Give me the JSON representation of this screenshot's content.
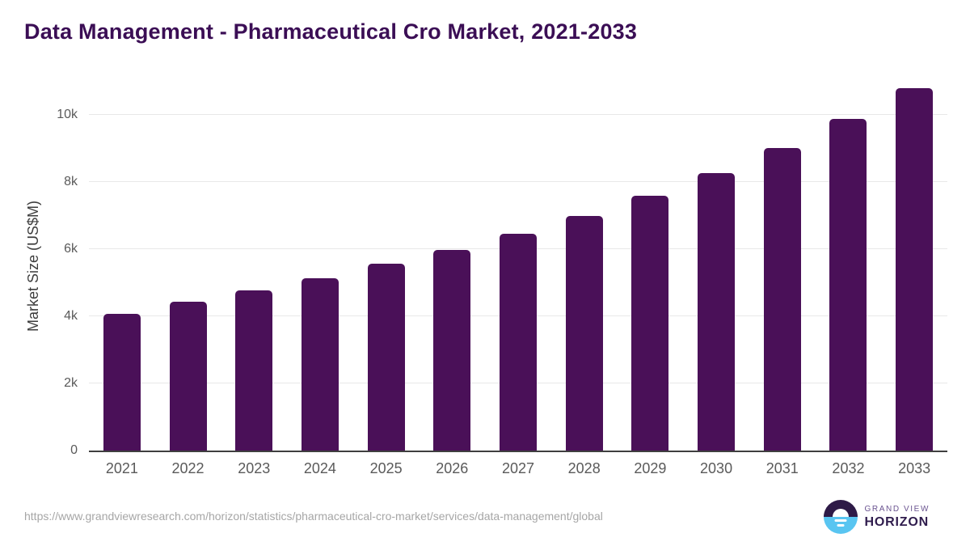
{
  "chart_data": {
    "type": "bar",
    "title": "Data Management - Pharmaceutical Cro Market, 2021-2033",
    "categories": [
      "2021",
      "2022",
      "2023",
      "2024",
      "2025",
      "2026",
      "2027",
      "2028",
      "2029",
      "2030",
      "2031",
      "2032",
      "2033"
    ],
    "values": [
      4060,
      4420,
      4770,
      5130,
      5550,
      5970,
      6450,
      6980,
      7580,
      8260,
      9000,
      9860,
      10780
    ],
    "xlabel": "",
    "ylabel": "Market Size (US$M)",
    "ylim": [
      0,
      11000
    ],
    "yticks": [
      {
        "value": 0,
        "label": "0"
      },
      {
        "value": 2000,
        "label": "2k"
      },
      {
        "value": 4000,
        "label": "4k"
      },
      {
        "value": 6000,
        "label": "6k"
      },
      {
        "value": 8000,
        "label": "8k"
      },
      {
        "value": 10000,
        "label": "10k"
      }
    ],
    "grid": "horizontal",
    "legend": "none"
  },
  "footer": {
    "url": "https://www.grandviewresearch.com/horizon/statistics/pharmaceutical-cro-market/services/data-management/global",
    "logo": {
      "line1": "GRAND VIEW",
      "line2": "HORIZON",
      "icon": "horizon-sunrise-icon"
    }
  },
  "colors": {
    "bar": "#4a1058",
    "title": "#3b0e55",
    "axis_text": "#5a5a5a",
    "ylabel_text": "#3d3d3d",
    "grid": "#e8e8e8",
    "baseline": "#3f3f3f",
    "url_text": "#a6a6a6",
    "logo_purple": "#2e1a47",
    "logo_blue": "#59c5f1",
    "logo_gv_text": "#6a5390",
    "logo_horizon_text": "#2f1c4d"
  }
}
